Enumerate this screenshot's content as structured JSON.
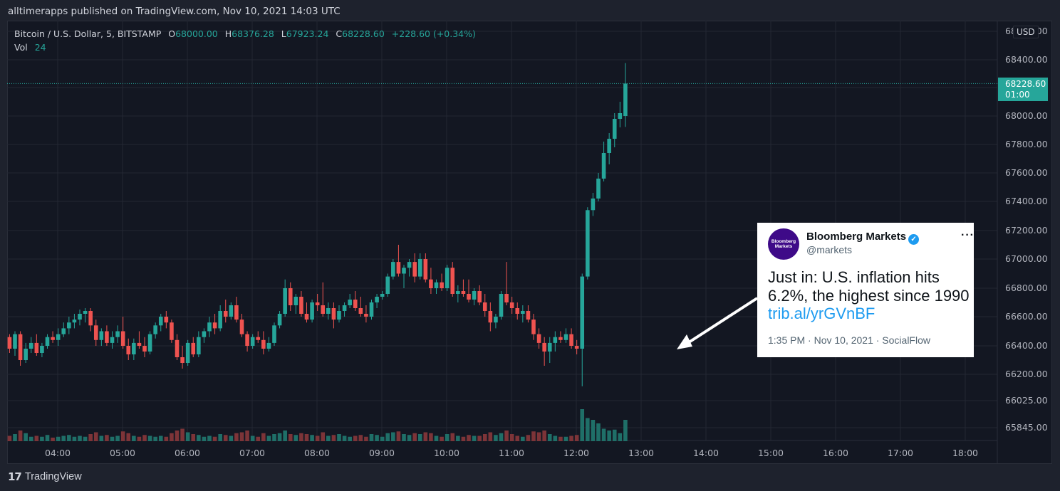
{
  "header": {
    "publish_line": "alltimerapps published on TradingView.com, Nov 10, 2021 14:03 UTC"
  },
  "legend": {
    "symbol": "Bitcoin / U.S. Dollar, 5, BITSTAMP",
    "open_label": "O",
    "open": "68000.00",
    "high_label": "H",
    "high": "68376.28",
    "low_label": "L",
    "low": "67923.24",
    "close_label": "C",
    "close": "68228.60",
    "change": "+228.60 (+0.34%)",
    "vol_label": "Vol",
    "vol": "24"
  },
  "currency_badge": "USD",
  "last_price_tag": {
    "price": "68228.60",
    "countdown": "01:00"
  },
  "colors": {
    "up": "#26a69a",
    "down": "#ef5350",
    "vol_up": "#1f6f68",
    "vol_down": "#7d3438",
    "background": "#131722",
    "grid": "#232733"
  },
  "tweet": {
    "author": "Bloomberg Markets",
    "handle": "@markets",
    "avatar_text": "Bloomberg Markets",
    "text": "Just in: U.S. inflation hits 6.2%, the highest since 1990",
    "link": "trib.al/yrGVnBF",
    "meta": "1:35 PM · Nov 10, 2021 · SocialFlow",
    "verified_icon": "verified-check-icon",
    "more_icon": "more-dots-icon"
  },
  "footer": {
    "brand": "TradingView",
    "logo_icon": "tradingview-logo-icon"
  },
  "chart_data": {
    "type": "candlestick",
    "symbol": "Bitcoin / U.S. Dollar",
    "interval": "5",
    "exchange": "BITSTAMP",
    "currency": "USD",
    "x_ticks": [
      "04:00",
      "05:00",
      "06:00",
      "07:00",
      "08:00",
      "09:00",
      "10:00",
      "11:00",
      "12:00",
      "13:00",
      "14:00",
      "15:00",
      "16:00",
      "17:00",
      "18:00"
    ],
    "y_ticks": [
      "68600.00",
      "68400.00",
      "68200.00",
      "68000.00",
      "67800.00",
      "67600.00",
      "67400.00",
      "67200.00",
      "67000.00",
      "66800.00",
      "66600.00",
      "66400.00",
      "66200.00",
      "66025.00",
      "65845.00"
    ],
    "ylim": [
      65800,
      68600
    ],
    "last_price": 68228.6,
    "start_time": "03:15",
    "candles": [
      [
        66500,
        66550,
        66380,
        66420,
        8
      ],
      [
        66420,
        66520,
        66400,
        66480,
        6
      ],
      [
        66480,
        66560,
        66300,
        66320,
        9
      ],
      [
        66320,
        66620,
        66300,
        66560,
        10
      ],
      [
        66560,
        66600,
        66450,
        66480,
        6
      ],
      [
        66480,
        66560,
        66420,
        66520,
        5
      ],
      [
        66520,
        66560,
        66380,
        66420,
        7
      ],
      [
        66420,
        66500,
        66360,
        66460,
        5
      ],
      [
        66460,
        66480,
        66350,
        66380,
        6
      ],
      [
        66380,
        66500,
        66330,
        66480,
        8
      ],
      [
        66480,
        66500,
        66260,
        66300,
        12
      ],
      [
        66300,
        66420,
        66280,
        66380,
        9
      ],
      [
        66380,
        66460,
        66350,
        66420,
        5
      ],
      [
        66420,
        66480,
        66330,
        66350,
        6
      ],
      [
        66350,
        66420,
        66320,
        66400,
        5
      ],
      [
        66400,
        66480,
        66380,
        66460,
        7
      ],
      [
        66460,
        66500,
        66420,
        66440,
        4
      ],
      [
        66440,
        66520,
        66400,
        66480,
        5
      ],
      [
        66480,
        66560,
        66460,
        66520,
        6
      ],
      [
        66520,
        66600,
        66480,
        66560,
        7
      ],
      [
        66560,
        66620,
        66520,
        66580,
        5
      ],
      [
        66580,
        66650,
        66540,
        66620,
        6
      ],
      [
        66620,
        66660,
        66560,
        66640,
        5
      ],
      [
        66640,
        66660,
        66500,
        66540,
        8
      ],
      [
        66540,
        66580,
        66400,
        66440,
        10
      ],
      [
        66440,
        66520,
        66400,
        66500,
        6
      ],
      [
        66500,
        66540,
        66400,
        66420,
        7
      ],
      [
        66420,
        66500,
        66380,
        66460,
        5
      ],
      [
        66460,
        66540,
        66420,
        66500,
        6
      ],
      [
        66500,
        66600,
        66380,
        66400,
        11
      ],
      [
        66400,
        66450,
        66300,
        66340,
        9
      ],
      [
        66340,
        66450,
        66300,
        66420,
        6
      ],
      [
        66420,
        66500,
        66380,
        66400,
        5
      ],
      [
        66400,
        66460,
        66320,
        66360,
        7
      ],
      [
        66360,
        66500,
        66340,
        66480,
        6
      ],
      [
        66480,
        66560,
        66450,
        66540,
        5
      ],
      [
        66540,
        66620,
        66500,
        66600,
        6
      ],
      [
        66600,
        66640,
        66520,
        66560,
        5
      ],
      [
        66560,
        66580,
        66420,
        66440,
        9
      ],
      [
        66440,
        66480,
        66300,
        66320,
        12
      ],
      [
        66320,
        66400,
        66240,
        66280,
        14
      ],
      [
        66280,
        66440,
        66260,
        66420,
        10
      ],
      [
        66420,
        66460,
        66320,
        66340,
        8
      ],
      [
        66340,
        66500,
        66320,
        66460,
        7
      ],
      [
        66460,
        66520,
        66420,
        66500,
        5
      ],
      [
        66500,
        66600,
        66460,
        66560,
        6
      ],
      [
        66560,
        66620,
        66480,
        66520,
        5
      ],
      [
        66520,
        66680,
        66500,
        66640,
        8
      ],
      [
        66640,
        66720,
        66560,
        66600,
        7
      ],
      [
        66600,
        66700,
        66580,
        66680,
        6
      ],
      [
        66680,
        66740,
        66560,
        66580,
        9
      ],
      [
        66580,
        66620,
        66460,
        66480,
        10
      ],
      [
        66480,
        66500,
        66360,
        66400,
        12
      ],
      [
        66400,
        66480,
        66380,
        66460,
        6
      ],
      [
        66460,
        66500,
        66420,
        66440,
        5
      ],
      [
        66440,
        66500,
        66340,
        66380,
        9
      ],
      [
        66380,
        66460,
        66360,
        66420,
        6
      ],
      [
        66420,
        66560,
        66400,
        66540,
        8
      ],
      [
        66540,
        66640,
        66520,
        66620,
        9
      ],
      [
        66620,
        66860,
        66600,
        66800,
        12
      ],
      [
        66800,
        66840,
        66640,
        66680,
        8
      ],
      [
        66680,
        66760,
        66620,
        66740,
        7
      ],
      [
        66740,
        66780,
        66600,
        66620,
        9
      ],
      [
        66620,
        66700,
        66560,
        66580,
        8
      ],
      [
        66580,
        66720,
        66560,
        66700,
        7
      ],
      [
        66700,
        66760,
        66640,
        66680,
        6
      ],
      [
        66680,
        66840,
        66600,
        66620,
        10
      ],
      [
        66620,
        66700,
        66580,
        66660,
        6
      ],
      [
        66660,
        66700,
        66520,
        66580,
        7
      ],
      [
        66580,
        66680,
        66560,
        66640,
        8
      ],
      [
        66640,
        66700,
        66600,
        66680,
        6
      ],
      [
        66680,
        66760,
        66660,
        66720,
        5
      ],
      [
        66720,
        66780,
        66640,
        66660,
        6
      ],
      [
        66660,
        66740,
        66600,
        66620,
        7
      ],
      [
        66620,
        66680,
        66560,
        66600,
        5
      ],
      [
        66600,
        66720,
        66580,
        66700,
        8
      ],
      [
        66700,
        66760,
        66660,
        66740,
        7
      ],
      [
        66740,
        66780,
        66720,
        66760,
        5
      ],
      [
        66760,
        66900,
        66740,
        66880,
        9
      ],
      [
        66880,
        67000,
        66860,
        66980,
        10
      ],
      [
        66980,
        67100,
        66880,
        66900,
        11
      ],
      [
        66900,
        66960,
        66800,
        66940,
        8
      ],
      [
        66940,
        67000,
        66880,
        66980,
        7
      ],
      [
        66980,
        67040,
        66840,
        66880,
        9
      ],
      [
        66880,
        67040,
        66860,
        67000,
        8
      ],
      [
        67000,
        67040,
        66840,
        66860,
        10
      ],
      [
        66860,
        66940,
        66760,
        66800,
        9
      ],
      [
        66800,
        66860,
        66760,
        66840,
        6
      ],
      [
        66840,
        66900,
        66780,
        66800,
        5
      ],
      [
        66800,
        66960,
        66780,
        66940,
        8
      ],
      [
        66940,
        66980,
        66740,
        66760,
        9
      ],
      [
        66760,
        66820,
        66700,
        66780,
        6
      ],
      [
        66780,
        66860,
        66740,
        66760,
        5
      ],
      [
        66760,
        66860,
        66700,
        66720,
        7
      ],
      [
        66720,
        66800,
        66680,
        66780,
        6
      ],
      [
        66780,
        66820,
        66680,
        66700,
        6
      ],
      [
        66700,
        66760,
        66600,
        66640,
        8
      ],
      [
        66640,
        66700,
        66500,
        66560,
        10
      ],
      [
        66560,
        66620,
        66520,
        66600,
        7
      ],
      [
        66600,
        66780,
        66580,
        66760,
        9
      ],
      [
        66760,
        66980,
        66680,
        66700,
        12
      ],
      [
        66700,
        66740,
        66620,
        66660,
        8
      ],
      [
        66660,
        66700,
        66580,
        66620,
        6
      ],
      [
        66620,
        66680,
        66560,
        66640,
        5
      ],
      [
        66640,
        66680,
        66560,
        66580,
        7
      ],
      [
        66580,
        66620,
        66440,
        66480,
        11
      ],
      [
        66480,
        66520,
        66380,
        66420,
        10
      ],
      [
        66420,
        66460,
        66260,
        66360,
        12
      ],
      [
        66360,
        66460,
        66280,
        66420,
        8
      ],
      [
        66420,
        66500,
        66360,
        66460,
        6
      ],
      [
        66460,
        66500,
        66420,
        66440,
        5
      ],
      [
        66440,
        66520,
        66420,
        66480,
        5
      ],
      [
        66480,
        66520,
        66380,
        66400,
        6
      ],
      [
        66400,
        66440,
        66340,
        66380,
        7
      ],
      [
        66380,
        66900,
        66120,
        66880,
        36
      ],
      [
        66880,
        67360,
        66860,
        67340,
        26
      ],
      [
        67340,
        67460,
        67300,
        67420,
        24
      ],
      [
        67420,
        67600,
        67400,
        67560,
        20
      ],
      [
        67560,
        67820,
        67540,
        67740,
        14
      ],
      [
        67740,
        67880,
        67660,
        67840,
        12
      ],
      [
        67840,
        68020,
        67780,
        67980,
        13
      ],
      [
        67980,
        68100,
        67920,
        68020,
        9
      ],
      [
        68000,
        68376.28,
        67923.24,
        68228.6,
        24
      ]
    ]
  }
}
